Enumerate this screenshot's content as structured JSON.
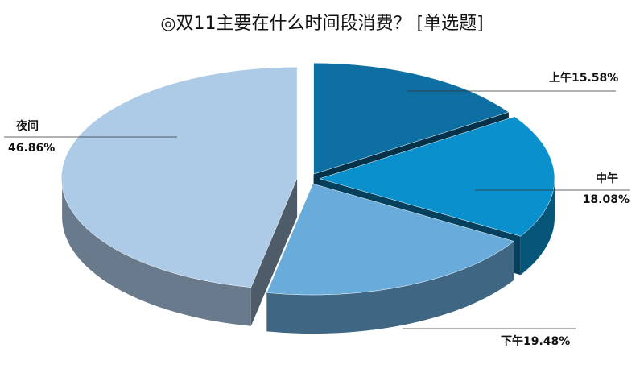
{
  "chart_data": {
    "type": "pie",
    "title": "◎双11主要在什么时间段消费？   [单选题]",
    "categories": [
      "上午",
      "中午",
      "下午",
      "夜间"
    ],
    "values": [
      15.58,
      18.08,
      19.48,
      46.86
    ],
    "value_labels": [
      "15.58%",
      "18.08%",
      "19.48%",
      "46.86%"
    ],
    "colors": [
      "#0e6fa2",
      "#0a90cc",
      "#69acdc",
      "#adcbe7"
    ]
  }
}
